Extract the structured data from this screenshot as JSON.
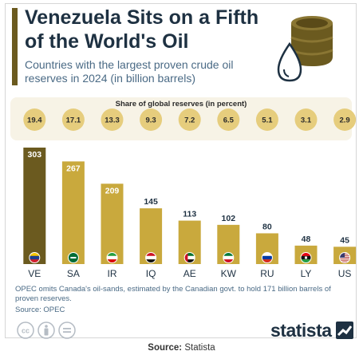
{
  "header": {
    "title": "Venezuela Sits on a Fifth of the World's Oil",
    "subtitle": "Countries with the largest proven crude oil reserves in 2024 (in billion barrels)"
  },
  "share_label": "Share of global reserves (in percent)",
  "chart_data": {
    "type": "bar",
    "title": "Venezuela Sits on a Fifth of the World's Oil",
    "subtitle": "Countries with the largest proven crude oil reserves in 2024 (in billion barrels)",
    "categories": [
      "VE",
      "SA",
      "IR",
      "IQ",
      "AE",
      "KW",
      "RU",
      "LY",
      "US"
    ],
    "values": [
      303,
      267,
      209,
      145,
      113,
      102,
      80,
      48,
      45
    ],
    "share_percent": [
      "19.4",
      "17.1",
      "13.3",
      "9.3",
      "7.2",
      "6.5",
      "5.1",
      "3.1",
      "2.9"
    ],
    "unit": "billion barrels",
    "ylim": [
      0,
      303
    ],
    "grid": false,
    "legend": "none"
  },
  "footnote": "OPEC omits Canada's oil-sands, estimated by the Canadian govt. to hold 171 billion barrels of proven reserves.",
  "source_line": "Source: OPEC",
  "logo": "statista",
  "caption": {
    "label": "Source:",
    "value": "Statista"
  },
  "colors": {
    "bar_highlight": "#6b5a1f",
    "bar": "#c9a93d",
    "bubble": "#e6cd7d",
    "share_background": "#f7f3e6",
    "title": "#1e3142",
    "subtitle": "#4a6a85"
  },
  "icons": [
    "oil-barrel-icon",
    "oil-drop-icon",
    "creative-commons-icon",
    "attribution-icon",
    "no-derivatives-icon",
    "statista-logo-icon"
  ]
}
